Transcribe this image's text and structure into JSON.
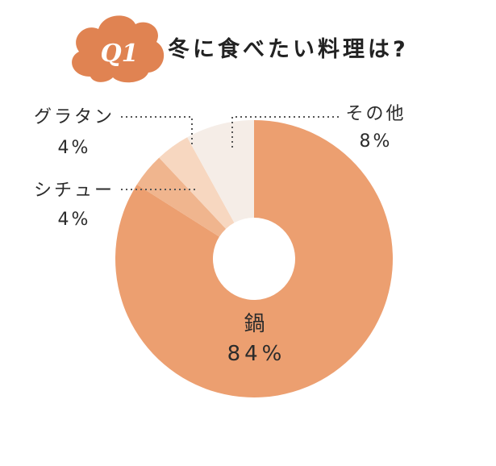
{
  "question": {
    "badge": "Q1",
    "title": "冬に食べたい料理は?",
    "badge_color": "#e08352"
  },
  "chart_data": {
    "type": "pie",
    "donut": true,
    "categories": [
      "鍋",
      "シチュー",
      "グラタン",
      "その他"
    ],
    "values": [
      84,
      4,
      4,
      8
    ],
    "value_labels": [
      "84%",
      "4%",
      "4%",
      "8%"
    ],
    "colors": [
      "#ec9f70",
      "#f0b58e",
      "#f7d7c0",
      "#f5ede7"
    ],
    "title": ""
  }
}
